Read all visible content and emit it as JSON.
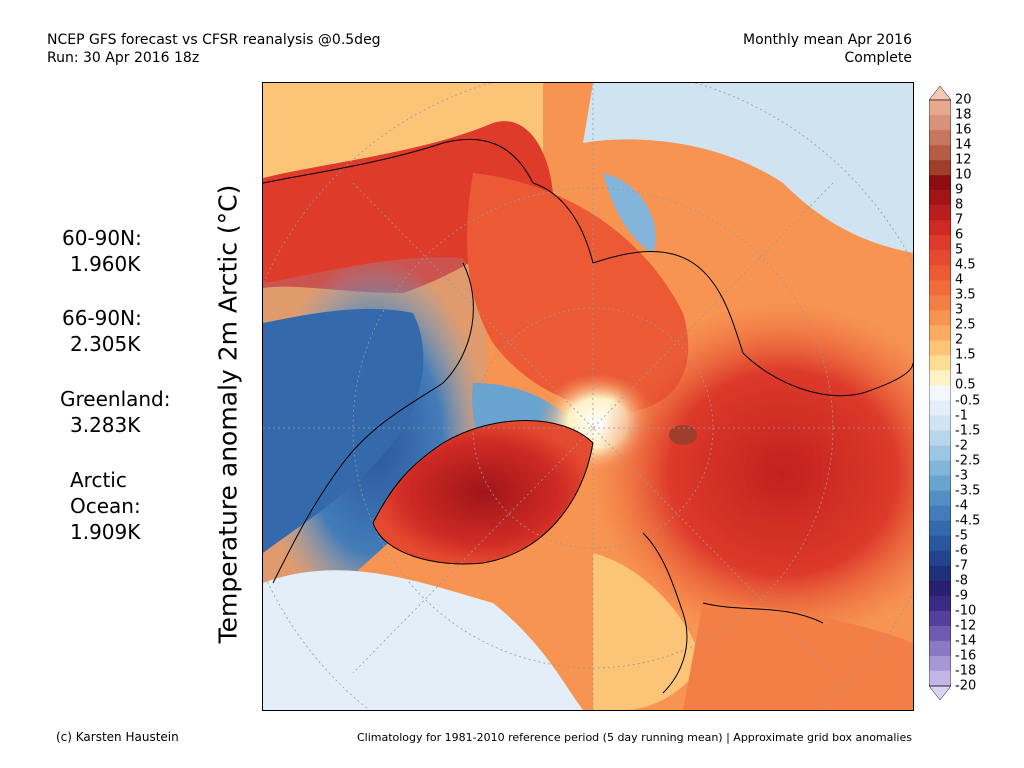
{
  "header": {
    "left_line1": "NCEP GFS forecast vs CFSR reanalysis @0.5deg",
    "left_line2": "Run: 30 Apr 2016 18z",
    "right_line1": "Monthly mean Apr 2016",
    "right_line2": "Complete"
  },
  "axis_label": "Temperature anomaly 2m Arctic (°C)",
  "stats": [
    {
      "label": "60-90N:",
      "value": "1.960K"
    },
    {
      "label": "66-90N:",
      "value": "2.305K"
    },
    {
      "label": "Greenland:",
      "value": "3.283K"
    },
    {
      "label_lines": [
        "Arctic",
        "Ocean:"
      ],
      "value": "1.909K"
    }
  ],
  "colorbar": {
    "labels": [
      "20",
      "18",
      "16",
      "14",
      "12",
      "10",
      "9",
      "8",
      "7",
      "6",
      "5",
      "4.5",
      "4",
      "3.5",
      "3",
      "2.5",
      "2",
      "1.5",
      "1",
      "0.5",
      "-0.5",
      "-1",
      "-1.5",
      "-2",
      "-2.5",
      "-3",
      "-3.5",
      "-4",
      "-4.5",
      "-5",
      "-6",
      "-7",
      "-8",
      "-9",
      "-10",
      "-12",
      "-14",
      "-16",
      "-18",
      "-20"
    ],
    "colors": [
      "#f6c8b3",
      "#e6a98e",
      "#d8917a",
      "#c77660",
      "#b55c47",
      "#9e3e2b",
      "#8c0d12",
      "#a31419",
      "#bb1d1e",
      "#cf2a24",
      "#de3b2b",
      "#e44a2f",
      "#eb5a35",
      "#f06c3c",
      "#f47f46",
      "#f79452",
      "#f9ab62",
      "#fbc477",
      "#fcdd95",
      "#fdf1c6",
      "#f4f8fc",
      "#e3eef8",
      "#cfe3f1",
      "#b8d6ea",
      "#9dc6e2",
      "#82b5d9",
      "#69a3cf",
      "#538fc4",
      "#437cb8",
      "#346aac",
      "#2a569d",
      "#23448c",
      "#1f307a",
      "#291f70",
      "#3b2a85",
      "#54409a",
      "#6f5bb0",
      "#8b78c4",
      "#a797d6",
      "#c3b6e6",
      "#dcd3f2"
    ]
  },
  "footer": {
    "left": "(c) Karsten Haustein",
    "right": "Climatology for 1981-2010 reference period (5 day running mean) | Approximate grid box anomalies"
  }
}
